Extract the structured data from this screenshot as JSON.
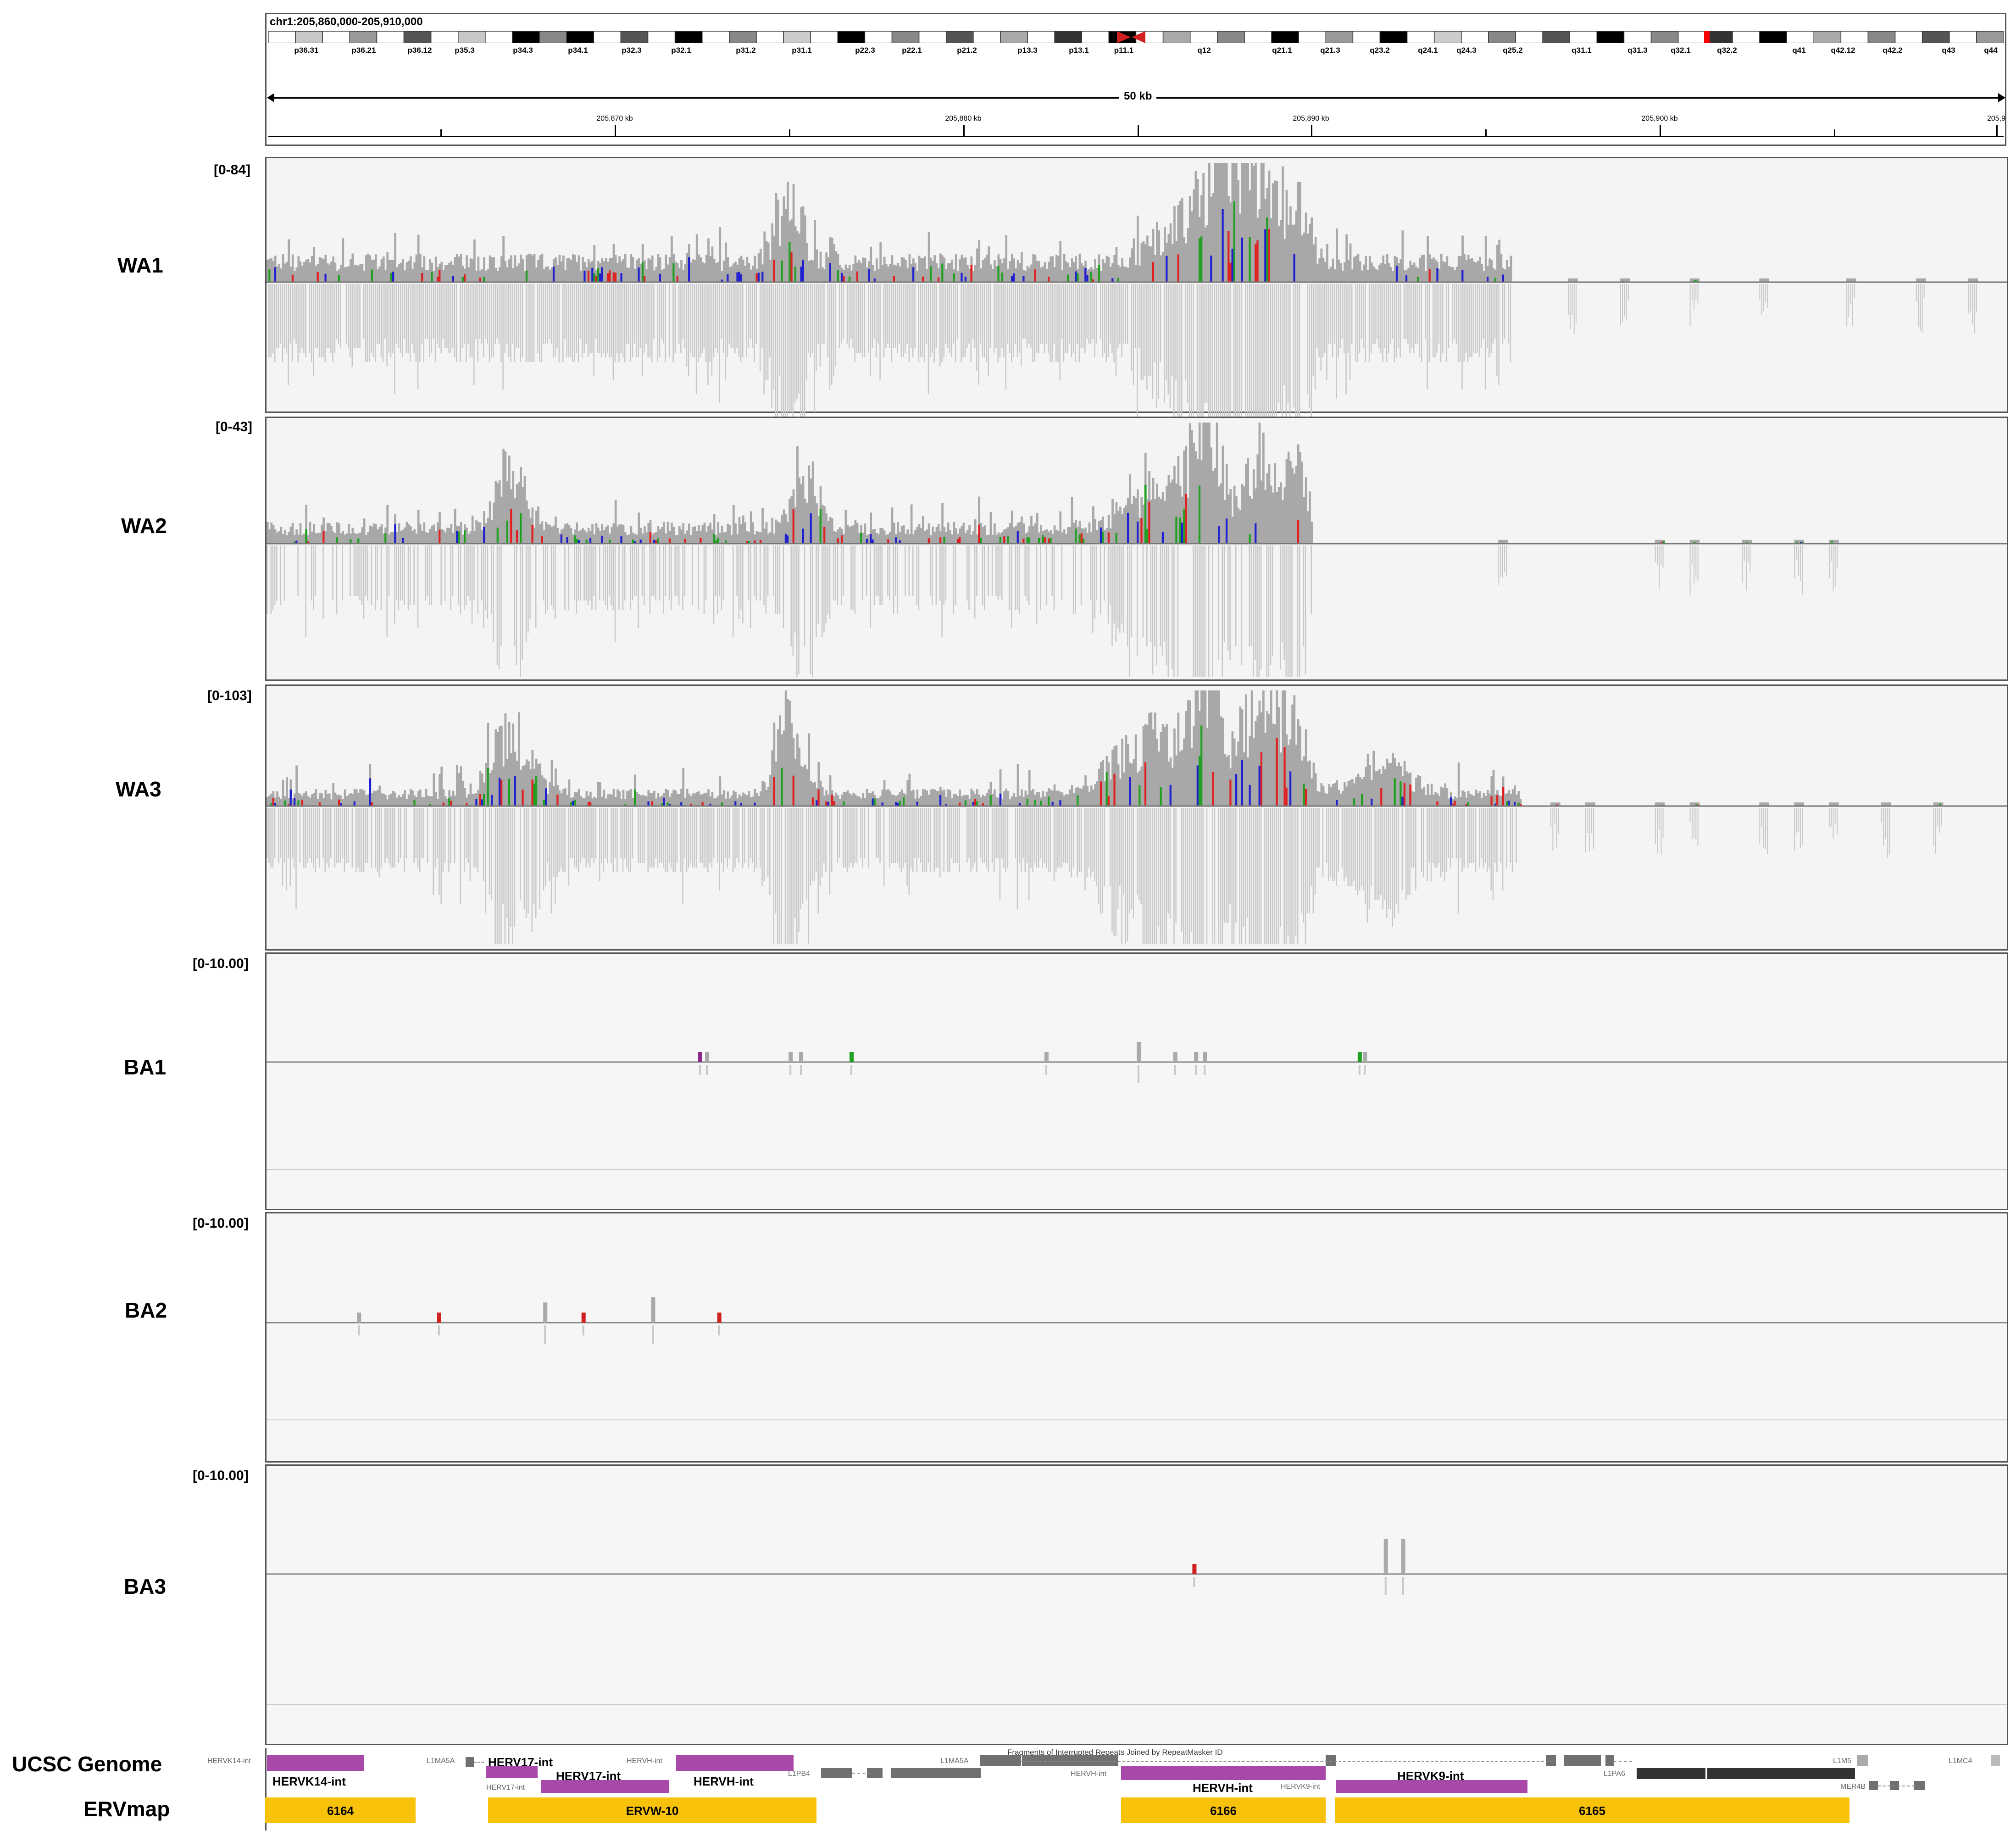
{
  "locus": "chr1:205,860,000-205,910,000",
  "ideogram_bands": [
    "p36.31",
    "p36.21",
    "p36.12",
    "p35.3",
    "p34.3",
    "p34.1",
    "p32.3",
    "p32.1",
    "p31.2",
    "p31.1",
    "p22.3",
    "p22.1",
    "p21.2",
    "p13.3",
    "p13.1",
    "p11.1",
    "q12",
    "q21.1",
    "q21.3",
    "q23.2",
    "q24.1",
    "q24.3",
    "q25.2",
    "q31.1",
    "q31.3",
    "q32.1",
    "q32.2",
    "q41",
    "q42.12",
    "q42.2",
    "q43",
    "q44"
  ],
  "span_label": "50 kb",
  "kb_ticks": [
    "205,870 kb",
    "205,880 kb",
    "205,890 kb",
    "205,900 kb",
    "205,9"
  ],
  "tracks": [
    {
      "name": "WA1",
      "range": "[0-84]"
    },
    {
      "name": "WA2",
      "range": "[0-43]"
    },
    {
      "name": "WA3",
      "range": "[0-103]"
    },
    {
      "name": "BA1",
      "range": "[0-10.00]"
    },
    {
      "name": "BA2",
      "range": "[0-10.00]"
    },
    {
      "name": "BA3",
      "range": "[0-10.00]"
    }
  ],
  "annotations": {
    "ucsc_label": "UCSC Genome",
    "ervmap_label": "ERVmap",
    "repeatmasker_header": "Fragments of Interrupted Repeats Joined by RepeatMasker ID",
    "small_labels": [
      "HERVK14-int",
      "L1MA5A",
      "HERV17-int",
      "HERVH-int",
      "L1MA5A",
      "L1PB4",
      "HERVH-int",
      "HERVK9-int",
      "L1PA6",
      "L1M5",
      "L1MC4",
      "MER4B"
    ],
    "bold_labels": [
      "HERVK14-int",
      "HERV17-int",
      "HERV17-int",
      "HERVH-int",
      "HERVH-int",
      "HERVK9-int"
    ],
    "ervmap": [
      "6164",
      "ERVW-10",
      "6166",
      "6165"
    ]
  },
  "colors": {
    "coverage": "#a8a8a8",
    "read": "#c8c8c8",
    "mismatch_red": "#e02020",
    "mismatch_blue": "#2020d0",
    "mismatch_green": "#20a020",
    "herv_purple": "#a848a8",
    "repeat_gray": "#707070",
    "ervmap_yellow": "#f8c10a"
  }
}
